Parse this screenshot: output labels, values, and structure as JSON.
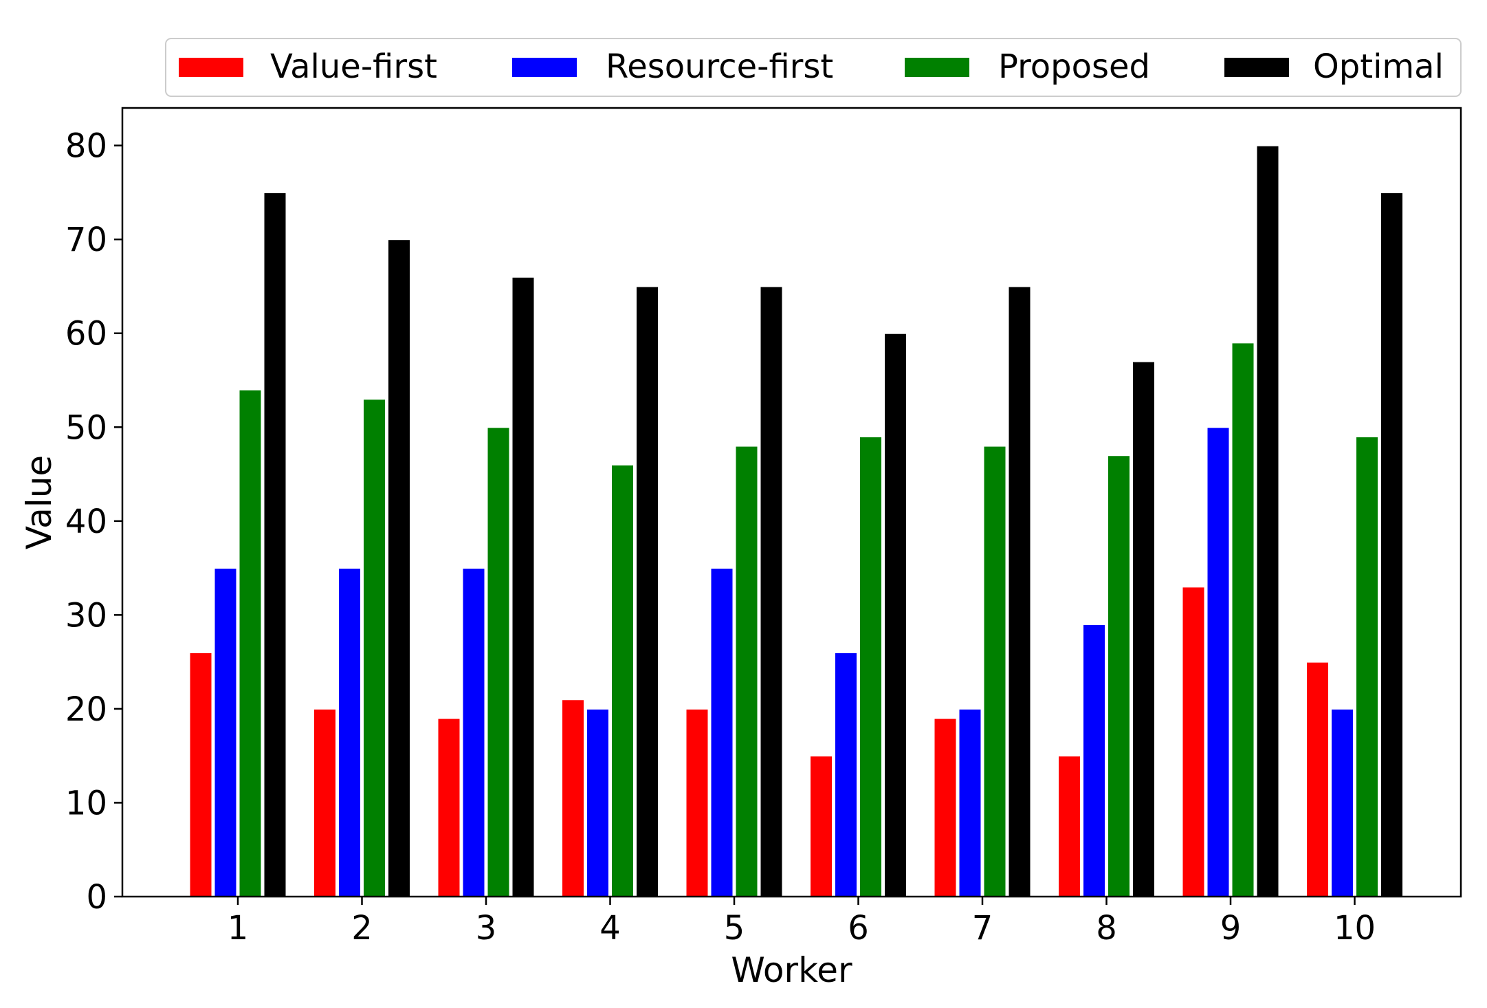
{
  "chart_data": {
    "type": "bar",
    "title": "",
    "xlabel": "Worker",
    "ylabel": "Value",
    "categories": [
      "1",
      "2",
      "3",
      "4",
      "5",
      "6",
      "7",
      "8",
      "9",
      "10"
    ],
    "ylim": [
      0,
      84
    ],
    "yticks": [
      0,
      10,
      20,
      30,
      40,
      50,
      60,
      70,
      80
    ],
    "legend_position": "top (above plot, single row)",
    "grid": false,
    "series": [
      {
        "name": "Value-first",
        "color": "#ff0000",
        "values": [
          26,
          20,
          19,
          21,
          20,
          15,
          19,
          15,
          33,
          25
        ]
      },
      {
        "name": "Resource-first",
        "color": "#0000ff",
        "values": [
          35,
          35,
          35,
          20,
          35,
          26,
          20,
          29,
          50,
          20
        ]
      },
      {
        "name": "Proposed",
        "color": "#008000",
        "values": [
          54,
          53,
          50,
          46,
          48,
          49,
          48,
          47,
          59,
          49
        ]
      },
      {
        "name": "Optimal",
        "color": "#000000",
        "values": [
          75,
          70,
          66,
          65,
          65,
          60,
          65,
          57,
          80,
          75
        ]
      }
    ]
  }
}
